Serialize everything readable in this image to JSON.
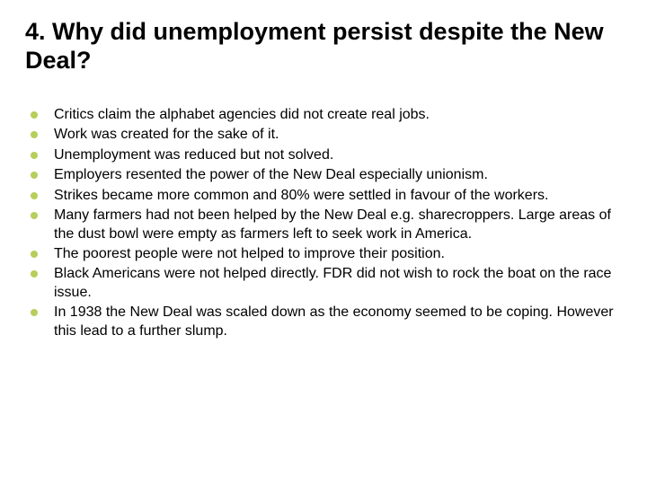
{
  "title": "4. Why did unemployment persist despite the New Deal?",
  "bullet_color": "#b6ce5b",
  "text_color": "#000000",
  "background_color": "#ffffff",
  "title_fontsize": 27,
  "body_fontsize": 16,
  "bullets": [
    "Critics claim the alphabet agencies did not create real jobs.",
    "Work was created for the sake of it.",
    "Unemployment was reduced but not solved.",
    "Employers resented the power of the New Deal especially unionism.",
    "Strikes became more common and 80% were settled in favour of the workers.",
    "Many farmers had not been helped by the New Deal e.g. sharecroppers. Large areas of the dust bowl were empty as farmers left to seek work in America.",
    "The poorest people were not helped to improve their position.",
    "Black Americans were not helped directly. FDR did not wish to rock the boat on the race issue.",
    "In 1938 the New Deal was scaled down as the economy seemed to be coping. However this lead to a further slump."
  ]
}
